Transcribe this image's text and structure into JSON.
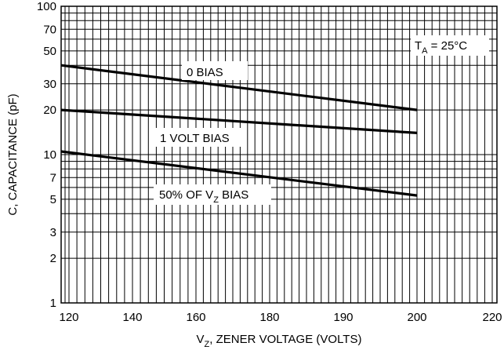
{
  "chart_data": {
    "type": "line",
    "title": "",
    "xlabel": "V",
    "xlabel_sub": "Z",
    "xlabel_rest": ", ZENER VOLTAGE (VOLTS)",
    "ylabel": "C, CAPACITANCE (pF)",
    "y_scale": "log",
    "ylim": [
      1,
      100
    ],
    "x_tick_labels": [
      "120",
      "140",
      "160",
      "180",
      "190",
      "200",
      "220"
    ],
    "y_ticks": [
      1,
      2,
      3,
      5,
      7,
      10,
      20,
      30,
      50,
      70,
      100
    ],
    "y_tick_labels": [
      "1",
      "2",
      "3",
      "5",
      "7",
      "10",
      "20",
      "30",
      "50",
      "70",
      "100"
    ],
    "grid": true,
    "line_color": "#000000",
    "annotation": {
      "main": "T",
      "sub": "A",
      "rest": " = 25°C"
    },
    "series": [
      {
        "label": "0 BIAS",
        "x_start": "120",
        "x_end": "200",
        "y_start": 40,
        "y_end": 20
      },
      {
        "label": "1 VOLT BIAS",
        "x_start": "120",
        "x_end": "200",
        "y_start": 20,
        "y_end": 14
      },
      {
        "label_main": "50% OF V",
        "label_sub": "Z",
        "label_rest": " BIAS",
        "x_start": "120",
        "x_end": "200",
        "y_start": 10.5,
        "y_end": 5.3
      }
    ]
  }
}
